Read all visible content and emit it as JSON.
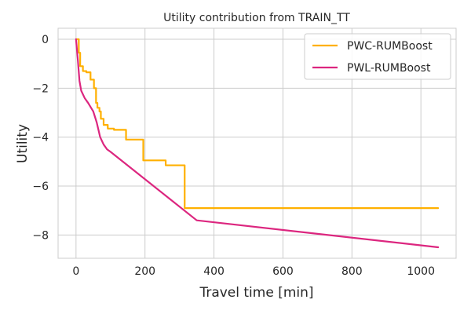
{
  "chart_data": {
    "type": "line",
    "title": "Utility contribution from TRAIN_TT",
    "xlabel": "Travel time [min]",
    "ylabel": "Utility",
    "xlim": [
      -52,
      1102
    ],
    "ylim": [
      -8.95,
      0.45
    ],
    "xticks": [
      0,
      200,
      400,
      600,
      800,
      1000
    ],
    "yticks": [
      0,
      -2,
      -4,
      -6,
      -8
    ],
    "xtick_labels": [
      "0",
      "200",
      "400",
      "600",
      "800",
      "1000"
    ],
    "ytick_labels": [
      "0",
      "−2",
      "−4",
      "−6",
      "−8"
    ],
    "grid": true,
    "legend_position": "top-right",
    "series": [
      {
        "name": "PWC-RUMBoost",
        "color": "#FFB000",
        "step": true,
        "x": [
          0,
          8,
          12,
          20,
          30,
          42,
          52,
          58,
          62,
          68,
          72,
          80,
          92,
          110,
          145,
          195,
          260,
          315,
          1050
        ],
        "y": [
          0,
          -0.55,
          -1.1,
          -1.3,
          -1.35,
          -1.65,
          -2.0,
          -2.6,
          -2.8,
          -2.95,
          -3.25,
          -3.5,
          -3.65,
          -3.7,
          -4.1,
          -4.95,
          -5.15,
          -6.9,
          -6.9
        ]
      },
      {
        "name": "PWL-RUMBoost",
        "color": "#DC267F",
        "step": false,
        "x": [
          0,
          5,
          10,
          15,
          25,
          35,
          50,
          60,
          70,
          80,
          90,
          100,
          350,
          1050
        ],
        "y": [
          0,
          -0.8,
          -1.7,
          -2.1,
          -2.4,
          -2.6,
          -2.95,
          -3.4,
          -4.0,
          -4.3,
          -4.5,
          -4.6,
          -7.4,
          -8.5
        ]
      }
    ]
  }
}
